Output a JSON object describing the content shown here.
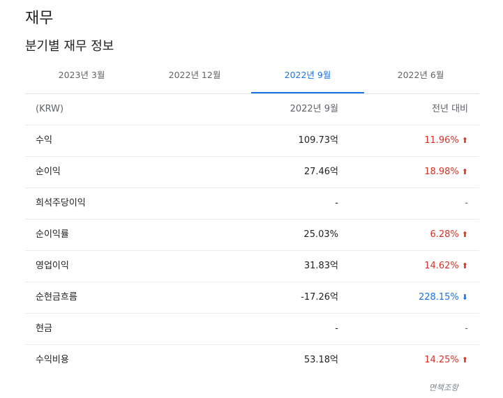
{
  "page": {
    "title": "재무",
    "subtitle": "분기별 재무 정보"
  },
  "tabs": [
    {
      "label": "2023년 3월",
      "active": false
    },
    {
      "label": "2022년 12월",
      "active": false
    },
    {
      "label": "2022년 9월",
      "active": true
    },
    {
      "label": "2022년 6월",
      "active": false
    }
  ],
  "table": {
    "header": {
      "label": "(KRW)",
      "value": "2022년 9월",
      "change": "전년 대비"
    },
    "rows": [
      {
        "label": "수익",
        "value": "109.73억",
        "change": "11.96%",
        "direction": "up"
      },
      {
        "label": "순이익",
        "value": "27.46억",
        "change": "18.98%",
        "direction": "up"
      },
      {
        "label": "희석주당이익",
        "value": "-",
        "change": "-",
        "direction": "none"
      },
      {
        "label": "순이익률",
        "value": "25.03%",
        "change": "6.28%",
        "direction": "up"
      },
      {
        "label": "영업이익",
        "value": "31.83억",
        "change": "14.62%",
        "direction": "up"
      },
      {
        "label": "순현금흐름",
        "value": "-17.26억",
        "change": "228.15%",
        "direction": "down"
      },
      {
        "label": "현금",
        "value": "-",
        "change": "-",
        "direction": "none"
      },
      {
        "label": "수익비용",
        "value": "53.18억",
        "change": "14.25%",
        "direction": "up"
      }
    ]
  },
  "disclaimer": "면책조항",
  "colors": {
    "up": "#d93025",
    "down": "#1a73e8",
    "accent": "#1a73e8"
  },
  "icons": {
    "up": "arrow-up-icon",
    "down": "arrow-down-icon"
  }
}
